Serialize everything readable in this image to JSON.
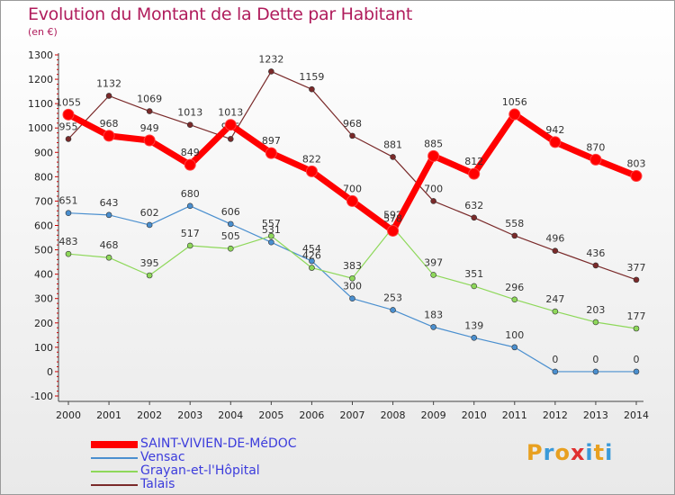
{
  "title": "Evolution du Montant de la Dette par Habitant",
  "unit_label": "(en €)",
  "logo": {
    "text": "Proxiti",
    "colors": [
      "#e8a020",
      "#3a9ad9",
      "#e8a020",
      "#e03030",
      "#3a9ad9",
      "#e8a020",
      "#3a9ad9"
    ]
  },
  "chart_data": {
    "type": "line",
    "x": [
      "2000",
      "2001",
      "2002",
      "2003",
      "2004",
      "2005",
      "2006",
      "2007",
      "2008",
      "2009",
      "2010",
      "2011",
      "2012",
      "2013",
      "2014"
    ],
    "ylim": [
      -100,
      1300
    ],
    "yticks": [
      -100,
      0,
      100,
      200,
      300,
      400,
      500,
      600,
      700,
      800,
      900,
      1000,
      1100,
      1200,
      1300
    ],
    "grid": false,
    "legend_position": "bottom-left",
    "series": [
      {
        "name": "Talais",
        "color": "#7a2a2a",
        "values": [
          955,
          1132,
          1069,
          1013,
          955,
          1232,
          1159,
          968,
          881,
          700,
          632,
          558,
          496,
          436,
          377
        ]
      },
      {
        "name": "Vensac",
        "color": "#4a8fcf",
        "values": [
          651,
          643,
          602,
          680,
          606,
          531,
          454,
          300,
          253,
          183,
          139,
          100,
          0,
          0,
          0
        ]
      },
      {
        "name": "Grayan-et-l'Hôpital",
        "color": "#8ed85a",
        "values": [
          483,
          468,
          395,
          517,
          505,
          557,
          426,
          383,
          592,
          397,
          351,
          296,
          247,
          203,
          177
        ]
      },
      {
        "name": "SAINT-VIVIEN-DE-MéDOC",
        "color": "#ff0000",
        "thick": true,
        "values": [
          1055,
          968,
          949,
          849,
          1013,
          897,
          822,
          700,
          578,
          885,
          812,
          1056,
          942,
          870,
          803
        ]
      }
    ],
    "legend_order": [
      "SAINT-VIVIEN-DE-MéDOC",
      "Vensac",
      "Grayan-et-l'Hôpital",
      "Talais"
    ]
  }
}
